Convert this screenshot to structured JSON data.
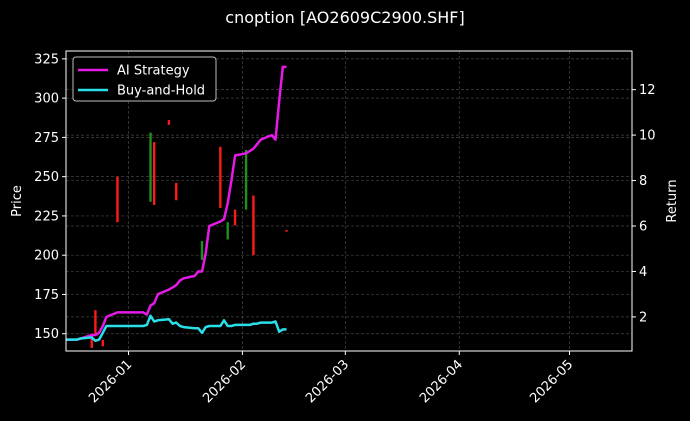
{
  "title": "cnoption [AO2609C2900.SHF]",
  "colors": {
    "background": "#000000",
    "ai_strategy": "#e61ae6",
    "buy_and_hold": "#29e0e8",
    "candle_up": "#1f8f1f",
    "candle_down": "#ff1a1a",
    "grid": "#444444",
    "axes": "#ffffff"
  },
  "legend": {
    "items": [
      {
        "label": "AI Strategy",
        "color": "#e61ae6"
      },
      {
        "label": "Buy-and-Hold",
        "color": "#29e0e8"
      }
    ]
  },
  "chart_data": {
    "type": "line",
    "title": "cnoption [AO2609C2900.SHF]",
    "xlabel": "",
    "ylabel": "Price",
    "y2label": "Return",
    "ylim": [
      139,
      330
    ],
    "y2lim": [
      0.5,
      13.7
    ],
    "x_range": [
      "2025-12-15",
      "2026-05-18"
    ],
    "x_ticks": [
      "2026-01",
      "2026-02",
      "2026-03",
      "2026-04",
      "2026-05"
    ],
    "y_ticks": [
      150,
      175,
      200,
      225,
      250,
      275,
      300,
      325
    ],
    "y2_ticks": [
      2,
      4,
      6,
      8,
      10,
      12
    ],
    "grid": true,
    "legend_position": "upper left",
    "x": [
      "2025-12-15",
      "2025-12-18",
      "2025-12-19",
      "2025-12-22",
      "2025-12-23",
      "2025-12-24",
      "2025-12-25",
      "2025-12-26",
      "2025-12-29",
      "2025-12-30",
      "2026-01-05",
      "2026-01-06",
      "2026-01-07",
      "2026-01-08",
      "2026-01-09",
      "2026-01-12",
      "2026-01-13",
      "2026-01-14",
      "2026-01-15",
      "2026-01-16",
      "2026-01-19",
      "2026-01-20",
      "2026-01-21",
      "2026-01-22",
      "2026-01-23",
      "2026-01-26",
      "2026-01-27",
      "2026-01-28",
      "2026-01-29",
      "2026-01-30",
      "2026-02-02",
      "2026-02-03",
      "2026-02-04",
      "2026-02-05",
      "2026-02-06",
      "2026-02-09",
      "2026-02-10",
      "2026-02-11",
      "2026-02-12",
      "2026-02-13"
    ],
    "series": [
      {
        "name": "AI Strategy",
        "axis": "right",
        "values": [
          1.0,
          1.0,
          1.05,
          1.2,
          1.2,
          1.3,
          1.6,
          2.0,
          2.2,
          2.2,
          2.2,
          2.1,
          2.5,
          2.6,
          3.0,
          3.2,
          3.3,
          3.4,
          3.6,
          3.7,
          3.8,
          4.0,
          4.0,
          4.8,
          6.0,
          6.2,
          6.3,
          7.0,
          8.0,
          9.1,
          9.2,
          9.3,
          9.4,
          9.6,
          9.8,
          10.0,
          9.8,
          11.5,
          13.0,
          13.0
        ]
      },
      {
        "name": "Buy-and-Hold",
        "axis": "right",
        "values": [
          1.0,
          1.0,
          1.05,
          1.1,
          0.95,
          1.0,
          1.3,
          1.6,
          1.6,
          1.6,
          1.6,
          1.65,
          2.05,
          1.8,
          1.85,
          1.9,
          1.7,
          1.75,
          1.6,
          1.55,
          1.5,
          1.5,
          1.3,
          1.55,
          1.6,
          1.6,
          1.85,
          1.6,
          1.6,
          1.65,
          1.65,
          1.65,
          1.7,
          1.7,
          1.75,
          1.75,
          1.8,
          1.35,
          1.45,
          1.45
        ]
      }
    ],
    "candles_approx": [
      {
        "date": "2025-12-22",
        "low": 141,
        "high": 150,
        "dir": "down"
      },
      {
        "date": "2025-12-23",
        "low": 150,
        "high": 165,
        "dir": "down"
      },
      {
        "date": "2025-12-25",
        "low": 142,
        "high": 146,
        "dir": "down"
      },
      {
        "date": "2025-12-29",
        "low": 221,
        "high": 250,
        "dir": "down"
      },
      {
        "date": "2026-01-07",
        "low": 234,
        "high": 278,
        "dir": "up"
      },
      {
        "date": "2026-01-08",
        "low": 232,
        "high": 272,
        "dir": "down"
      },
      {
        "date": "2026-01-12",
        "low": 283,
        "high": 286,
        "dir": "down"
      },
      {
        "date": "2026-01-14",
        "low": 235,
        "high": 246,
        "dir": "down"
      },
      {
        "date": "2026-01-21",
        "low": 197,
        "high": 209,
        "dir": "up"
      },
      {
        "date": "2026-01-26",
        "low": 230,
        "high": 269,
        "dir": "down"
      },
      {
        "date": "2026-01-28",
        "low": 210,
        "high": 221,
        "dir": "up"
      },
      {
        "date": "2026-01-30",
        "low": 219,
        "high": 229,
        "dir": "down"
      },
      {
        "date": "2026-02-02",
        "low": 229,
        "high": 267,
        "dir": "up"
      },
      {
        "date": "2026-02-04",
        "low": 200,
        "high": 238,
        "dir": "down"
      },
      {
        "date": "2026-02-13",
        "low": 215,
        "high": 216,
        "dir": "down"
      }
    ]
  }
}
